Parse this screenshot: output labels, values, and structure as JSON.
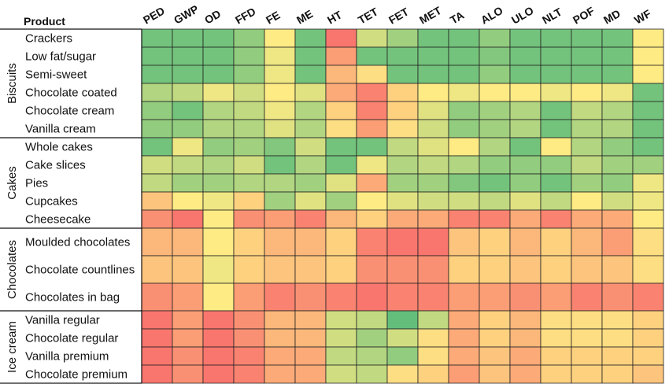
{
  "chart_data": {
    "type": "heatmap",
    "title": "",
    "row_header": "Product",
    "columns": [
      "PED",
      "GWP",
      "OD",
      "FFD",
      "FE",
      "ME",
      "HT",
      "TET",
      "FET",
      "MET",
      "TA",
      "ALO",
      "ULO",
      "NLT",
      "POF",
      "MD",
      "WF"
    ],
    "groups": [
      {
        "name": "Biscuits",
        "rows": [
          "Crackers",
          "Low fat/sugar",
          "Semi-sweet",
          "Chocolate coated",
          "Chocolate cream",
          "Vanilla cream"
        ]
      },
      {
        "name": "Cakes",
        "rows": [
          "Whole cakes",
          "Cake slices",
          "Pies",
          "Cupcakes",
          "Cheesecake"
        ]
      },
      {
        "name": "Chocolates",
        "rows": [
          "Moulded chocolates",
          "Chocolate countlines",
          "Chocolates in bag"
        ]
      },
      {
        "name": "Ice cream",
        "rows": [
          "Vanilla regular",
          "Chocolate regular",
          "Vanilla premium",
          "Chocolate premium"
        ]
      }
    ],
    "color_scale": {
      "low": "#63be7b",
      "mid": "#ffeb84",
      "high": "#f8696b"
    },
    "values": [
      [
        0.05,
        0.05,
        0.05,
        0.15,
        0.5,
        0.05,
        0.95,
        0.35,
        0.2,
        0.05,
        0.05,
        0.15,
        0.05,
        0.05,
        0.05,
        0.05,
        0.5
      ],
      [
        0.05,
        0.05,
        0.05,
        0.15,
        0.45,
        0.05,
        0.8,
        0.05,
        0.05,
        0.05,
        0.05,
        0.1,
        0.05,
        0.05,
        0.05,
        0.05,
        0.5
      ],
      [
        0.05,
        0.05,
        0.05,
        0.15,
        0.45,
        0.05,
        0.7,
        0.55,
        0.05,
        0.05,
        0.05,
        0.15,
        0.05,
        0.05,
        0.05,
        0.05,
        0.5
      ],
      [
        0.25,
        0.3,
        0.45,
        0.35,
        0.5,
        0.4,
        0.75,
        0.9,
        0.6,
        0.5,
        0.45,
        0.5,
        0.5,
        0.45,
        0.5,
        0.45,
        0.05
      ],
      [
        0.15,
        0.05,
        0.25,
        0.3,
        0.45,
        0.25,
        0.6,
        0.9,
        0.6,
        0.4,
        0.15,
        0.2,
        0.25,
        0.05,
        0.3,
        0.25,
        0.05
      ],
      [
        0.15,
        0.15,
        0.25,
        0.25,
        0.4,
        0.25,
        0.55,
        0.8,
        0.55,
        0.35,
        0.15,
        0.2,
        0.25,
        0.05,
        0.25,
        0.25,
        0.05
      ],
      [
        0.05,
        0.45,
        0.15,
        0.2,
        0.1,
        0.35,
        0.05,
        0.05,
        0.3,
        0.4,
        0.5,
        0.25,
        0.05,
        0.5,
        0.25,
        0.15,
        0.05
      ],
      [
        0.35,
        0.3,
        0.25,
        0.35,
        0.05,
        0.25,
        0.05,
        0.45,
        0.25,
        0.3,
        0.25,
        0.15,
        0.15,
        0.15,
        0.3,
        0.2,
        0.2
      ],
      [
        0.3,
        0.2,
        0.2,
        0.25,
        0.25,
        0.2,
        0.4,
        0.75,
        0.2,
        0.2,
        0.1,
        0.05,
        0.15,
        0.05,
        0.2,
        0.15,
        0.45
      ],
      [
        0.65,
        0.5,
        0.45,
        0.6,
        0.2,
        0.4,
        0.2,
        0.5,
        0.4,
        0.35,
        0.35,
        0.3,
        0.4,
        0.3,
        0.5,
        0.35,
        0.45
      ],
      [
        0.85,
        0.95,
        0.5,
        0.85,
        0.8,
        0.9,
        0.7,
        0.6,
        0.75,
        0.75,
        0.9,
        0.9,
        0.75,
        0.9,
        0.75,
        0.75,
        0.5
      ],
      [
        0.7,
        0.7,
        0.5,
        0.6,
        0.7,
        0.7,
        0.6,
        0.9,
        0.95,
        0.95,
        0.65,
        0.6,
        0.7,
        0.6,
        0.7,
        0.8,
        0.55
      ],
      [
        0.65,
        0.65,
        0.45,
        0.6,
        0.65,
        0.65,
        0.6,
        0.85,
        0.85,
        0.85,
        0.6,
        0.6,
        0.65,
        0.6,
        0.65,
        0.65,
        0.55
      ],
      [
        0.85,
        0.8,
        0.5,
        0.8,
        0.9,
        0.85,
        0.9,
        0.95,
        0.9,
        0.9,
        0.8,
        0.8,
        0.85,
        0.8,
        0.9,
        0.85,
        0.9
      ],
      [
        0.95,
        0.8,
        0.95,
        0.85,
        0.7,
        0.7,
        0.35,
        0.3,
        0.0,
        0.3,
        0.75,
        0.6,
        0.7,
        0.55,
        0.55,
        0.55,
        0.6
      ],
      [
        0.95,
        0.8,
        0.95,
        0.85,
        0.7,
        0.7,
        0.35,
        0.2,
        0.35,
        0.55,
        0.75,
        0.6,
        0.7,
        0.55,
        0.55,
        0.55,
        0.6
      ],
      [
        0.95,
        0.85,
        0.95,
        0.9,
        0.75,
        0.75,
        0.3,
        0.25,
        0.15,
        0.55,
        0.75,
        0.65,
        0.75,
        0.6,
        0.6,
        0.6,
        0.6
      ],
      [
        0.95,
        0.85,
        0.95,
        0.9,
        0.75,
        0.75,
        0.35,
        0.3,
        0.55,
        0.6,
        0.8,
        0.65,
        0.75,
        0.6,
        0.6,
        0.6,
        0.65
      ]
    ]
  }
}
